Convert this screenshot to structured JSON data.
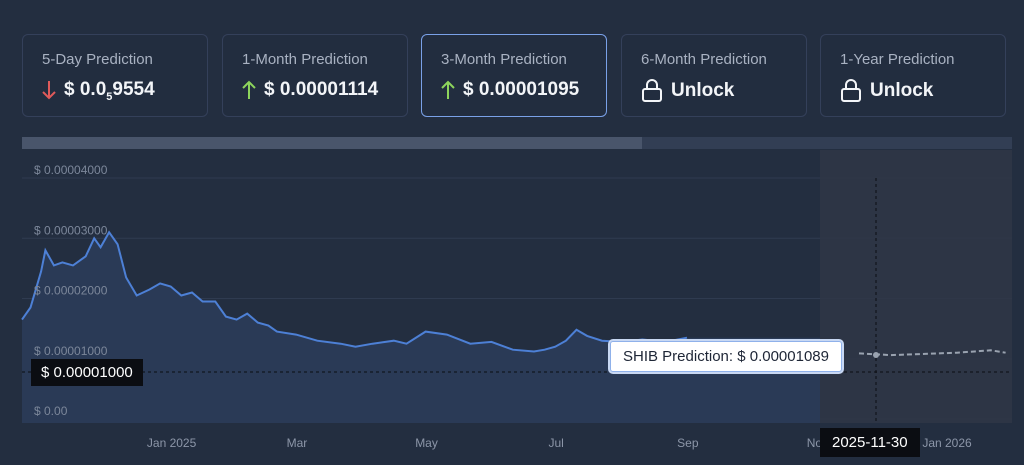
{
  "cards": [
    {
      "title": "5-Day Prediction",
      "direction": "down",
      "value_main": "$ 0.0",
      "value_sub": "5",
      "value_tail": "9554"
    },
    {
      "title": "1-Month Prediction",
      "direction": "up",
      "value": "$ 0.00001114"
    },
    {
      "title": "3-Month Prediction",
      "direction": "up",
      "value": "$ 0.00001095"
    },
    {
      "title": "6-Month Prediction",
      "direction": "lock",
      "value": "Unlock"
    },
    {
      "title": "1-Year Prediction",
      "direction": "lock",
      "value": "Unlock"
    }
  ],
  "colors": {
    "up": "#8dd45c",
    "down": "#e05a5a",
    "line": "#4d80d6",
    "prediction": "#9aa3b0"
  },
  "tooltip": {
    "text": "SHIB Prediction: $ 0.00001089"
  },
  "crosshair": {
    "y_label": "$ 0.00001000",
    "x_label": "2025-11-30"
  },
  "chart_data": {
    "type": "area",
    "y_ticks": [
      "$ 0.00004000",
      "$ 0.00003000",
      "$ 0.00002000",
      "$ 0.00001000",
      "$ 0.00"
    ],
    "ylim": [
      0,
      4e-05
    ],
    "x_ticks": [
      "Jan 2025",
      "Mar",
      "May",
      "Jul",
      "Sep",
      "Nov",
      "Jan 2026"
    ],
    "series": [
      {
        "x": [
          "2024-11-05",
          "2024-11-10",
          "2024-11-12",
          "2024-11-16",
          "2024-11-20",
          "2024-11-25",
          "2024-12-01",
          "2024-12-05",
          "2024-12-08",
          "2024-12-12",
          "2024-12-16",
          "2024-12-20",
          "2024-12-25",
          "2024-12-31",
          "2025-01-05",
          "2025-01-10",
          "2025-01-15",
          "2025-01-20",
          "2025-01-25",
          "2025-01-31",
          "2025-02-05",
          "2025-02-10",
          "2025-02-15",
          "2025-02-20",
          "2025-02-25",
          "2025-03-01",
          "2025-03-10",
          "2025-03-20",
          "2025-03-31",
          "2025-04-07",
          "2025-04-15",
          "2025-04-25",
          "2025-05-01",
          "2025-05-10",
          "2025-05-20",
          "2025-05-31",
          "2025-06-10",
          "2025-06-20",
          "2025-06-30",
          "2025-07-05",
          "2025-07-10",
          "2025-07-15",
          "2025-07-20",
          "2025-07-25",
          "2025-08-01",
          "2025-08-10",
          "2025-08-20",
          "2025-08-31",
          "2025-09-10"
        ],
        "values": [
          1.85e-05,
          2.45e-05,
          2.8e-05,
          2.55e-05,
          2.6e-05,
          2.55e-05,
          2.7e-05,
          3e-05,
          2.85e-05,
          3.1e-05,
          2.9e-05,
          2.35e-05,
          2.05e-05,
          2.15e-05,
          2.25e-05,
          2.2e-05,
          2.05e-05,
          2.1e-05,
          1.95e-05,
          1.95e-05,
          1.7e-05,
          1.65e-05,
          1.75e-05,
          1.6e-05,
          1.55e-05,
          1.45e-05,
          1.4e-05,
          1.3e-05,
          1.25e-05,
          1.2e-05,
          1.25e-05,
          1.3e-05,
          1.25e-05,
          1.45e-05,
          1.4e-05,
          1.25e-05,
          1.28e-05,
          1.15e-05,
          1.12e-05,
          1.15e-05,
          1.2e-05,
          1.3e-05,
          1.48e-05,
          1.38e-05,
          1.3e-05,
          1.28e-05,
          1.32e-05,
          1.28e-05,
          1.35e-05
        ]
      }
    ],
    "prediction": {
      "x": [
        "2025-11-30",
        "2025-12-15",
        "2025-12-31",
        "2026-01-15",
        "2026-01-31",
        "2026-02-07"
      ],
      "values": [
        1.089e-05,
        1.06e-05,
        1.08e-05,
        1.1e-05,
        1.14e-05,
        1.1e-05
      ]
    },
    "grid": true
  }
}
